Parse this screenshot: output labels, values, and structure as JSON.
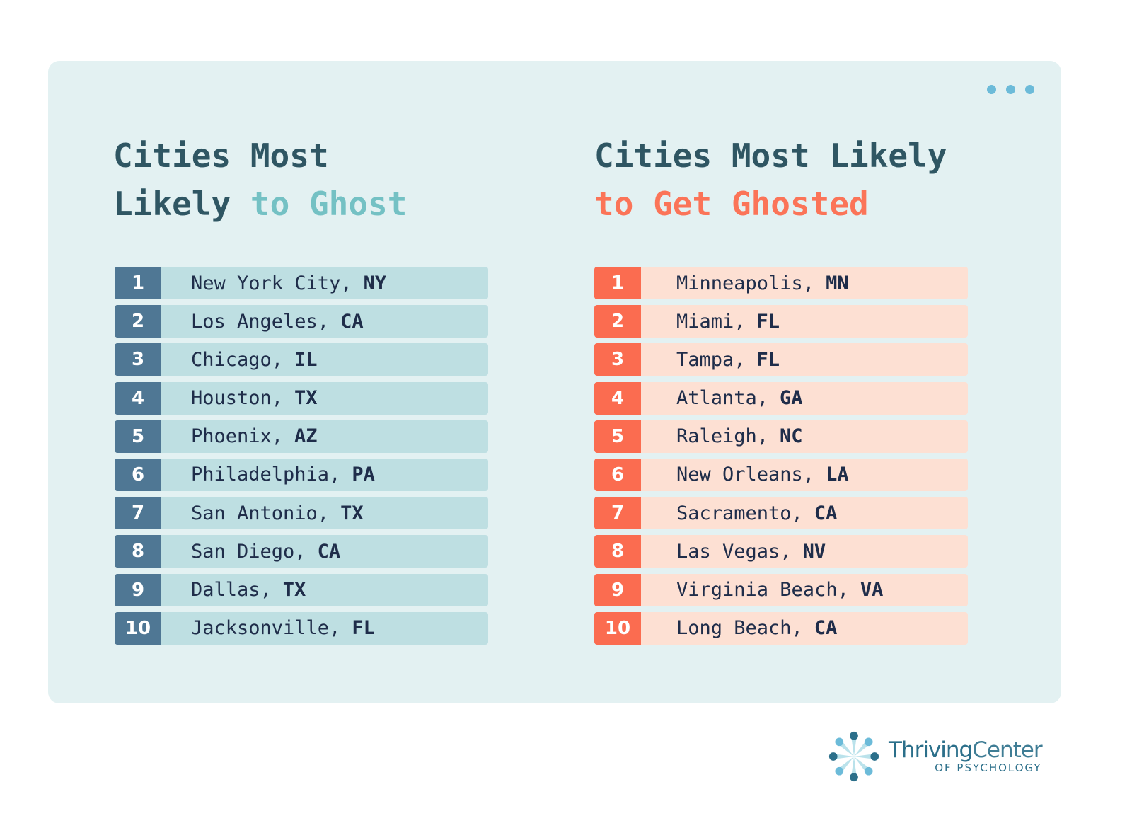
{
  "left": {
    "title_line1": "Cities Most",
    "title_line2_plain": "Likely",
    "title_line2_accent": "to Ghost",
    "items": [
      {
        "rank": "1",
        "city": "New York City,",
        "state": "NY"
      },
      {
        "rank": "2",
        "city": "Los Angeles,",
        "state": "CA"
      },
      {
        "rank": "3",
        "city": "Chicago,",
        "state": "IL"
      },
      {
        "rank": "4",
        "city": "Houston,",
        "state": "TX"
      },
      {
        "rank": "5",
        "city": "Phoenix,",
        "state": "AZ"
      },
      {
        "rank": "6",
        "city": "Philadelphia,",
        "state": "PA"
      },
      {
        "rank": "7",
        "city": "San Antonio,",
        "state": "TX"
      },
      {
        "rank": "8",
        "city": "San Diego,",
        "state": "CA"
      },
      {
        "rank": "9",
        "city": "Dallas,",
        "state": "TX"
      },
      {
        "rank": "10",
        "city": "Jacksonville,",
        "state": "FL"
      }
    ]
  },
  "right": {
    "title_line1": "Cities Most Likely",
    "title_line2_accent": "to Get Ghosted",
    "items": [
      {
        "rank": "1",
        "city": "Minneapolis,",
        "state": "MN"
      },
      {
        "rank": "2",
        "city": "Miami,",
        "state": "FL"
      },
      {
        "rank": "3",
        "city": "Tampa,",
        "state": "FL"
      },
      {
        "rank": "4",
        "city": "Atlanta,",
        "state": "GA"
      },
      {
        "rank": "5",
        "city": "Raleigh,",
        "state": "NC"
      },
      {
        "rank": "6",
        "city": "New Orleans,",
        "state": "LA"
      },
      {
        "rank": "7",
        "city": "Sacramento,",
        "state": "CA"
      },
      {
        "rank": "8",
        "city": "Las Vegas,",
        "state": "NV"
      },
      {
        "rank": "9",
        "city": "Virginia Beach,",
        "state": "VA"
      },
      {
        "rank": "10",
        "city": "Long Beach,",
        "state": "CA"
      }
    ]
  },
  "logo": {
    "name_bold": "Thriving",
    "name_light": "Center",
    "sub": "OF PSYCHOLOGY"
  },
  "colors": {
    "card": "#e3f1f2",
    "teal_accent": "#74c1c4",
    "coral_accent": "#fb7458",
    "rank_blue": "#4f7794",
    "rank_coral": "#fb6c50"
  }
}
